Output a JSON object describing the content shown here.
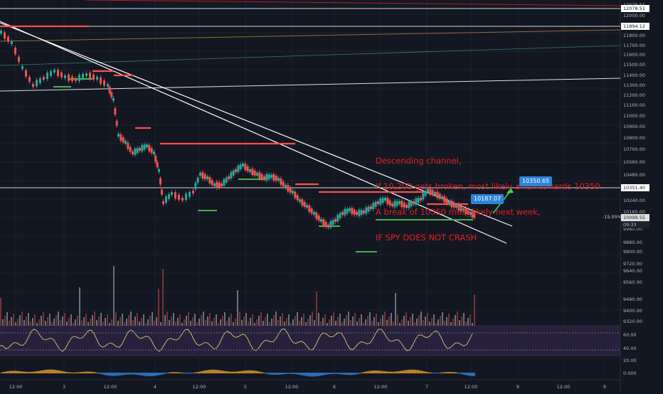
{
  "chart_data": {
    "type": "candlestick",
    "annotation_lines": [
      "Descending channel,",
      "If 10,200 gets broken, most likely a run towards 10350.",
      "A break of 10350 most likely next week,",
      "IF SPY DOES NOT CRASH"
    ],
    "price_tags": {
      "target": "10350.65",
      "current_marker": "10187.07"
    },
    "y_axis_ticks": [
      "12078.51",
      "12000.00",
      "11894.12",
      "11800.00",
      "11700.00",
      "11600.00",
      "11500.00",
      "11400.00",
      "11300.00",
      "11200.00",
      "11100.00",
      "11000.00",
      "10900.00",
      "10800.00",
      "10700.00",
      "10560.00",
      "10480.00",
      "10351.40",
      "10240.00",
      "10160.00",
      "10099.55",
      "09:33",
      "9980.00",
      "9880.00",
      "9800.00",
      "9720.00",
      "9640.00",
      "9560.00",
      "9480.00",
      "9400.00",
      "9320.00",
      "9244.00"
    ],
    "price_axis_badges": {
      "last_price": "10099.55",
      "change": "-15.05%",
      "countdown": "09:33",
      "level_high": "12078.51",
      "level_mid": "11894.12",
      "level_low": "10351.40"
    },
    "osc_axis_ticks": [
      "60.00",
      "40.00",
      "20.00"
    ],
    "macd_axis_ticks": [
      "0.000"
    ],
    "x_axis_ticks": [
      "12:00",
      "3",
      "12:00",
      "4",
      "12:00",
      "5",
      "12:00",
      "6",
      "12:00",
      "7",
      "12:00",
      "8",
      "12:00",
      "9"
    ],
    "colors": {
      "background": "#131722",
      "up": "#26a69a",
      "down": "#ef5350",
      "annotation": "#e02020",
      "tag": "#2f83d8",
      "osc_fill": "#3a2a55",
      "resistance": "#ff4d4d",
      "support": "#4caf50"
    }
  }
}
